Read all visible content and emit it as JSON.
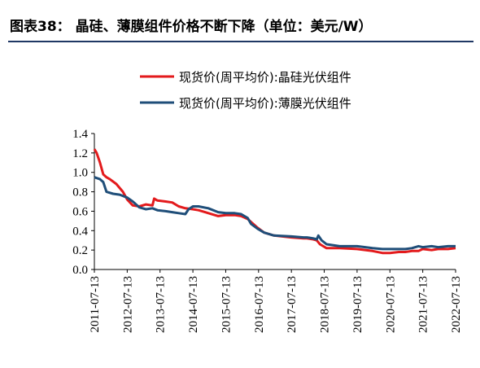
{
  "title": "图表38： 晶硅、薄膜组件价格不断下降（单位：美元/W）",
  "chart_data": {
    "type": "line",
    "title": "图表38： 晶硅、薄膜组件价格不断下降（单位：美元/W）",
    "legend_position": "top-center",
    "grid": false,
    "ylim": [
      0,
      1.4
    ],
    "yticks": [
      "1.4",
      "1.2",
      "1.0",
      "0.8",
      "0.6",
      "0.4",
      "0.2",
      "0.0"
    ],
    "yticks_values": [
      1.4,
      1.2,
      1.0,
      0.8,
      0.6,
      0.4,
      0.2,
      0.0
    ],
    "xticks": [
      "2011-07-13",
      "2012-07-13",
      "2013-07-13",
      "2014-07-13",
      "2015-07-13",
      "2016-07-13",
      "2017-07-13",
      "2018-07-13",
      "2019-07-13",
      "2020-07-13",
      "2021-07-13",
      "2022-07-13"
    ],
    "series": [
      {
        "name": "现货价(周平均价):晶硅光伏组件",
        "color": "#e31a1c",
        "x": [
          2011.53,
          2011.6,
          2011.7,
          2011.8,
          2011.9,
          2012.0,
          2012.2,
          2012.4,
          2012.53,
          2012.7,
          2012.9,
          2013.1,
          2013.3,
          2013.35,
          2013.45,
          2013.7,
          2013.9,
          2014.1,
          2014.3,
          2014.53,
          2014.7,
          2015.0,
          2015.3,
          2015.53,
          2015.8,
          2016.0,
          2016.2,
          2016.3,
          2016.5,
          2016.7,
          2017.0,
          2017.53,
          2017.9,
          2018.0,
          2018.2,
          2018.3,
          2018.4,
          2018.6,
          2019.0,
          2019.53,
          2020.0,
          2020.3,
          2020.53,
          2020.8,
          2021.0,
          2021.2,
          2021.4,
          2021.53,
          2021.8,
          2022.0,
          2022.3,
          2022.53
        ],
        "values": [
          1.24,
          1.2,
          1.1,
          0.98,
          0.95,
          0.93,
          0.88,
          0.8,
          0.72,
          0.66,
          0.65,
          0.67,
          0.66,
          0.73,
          0.71,
          0.7,
          0.69,
          0.65,
          0.63,
          0.62,
          0.61,
          0.58,
          0.55,
          0.56,
          0.56,
          0.55,
          0.52,
          0.49,
          0.43,
          0.38,
          0.35,
          0.33,
          0.32,
          0.32,
          0.31,
          0.3,
          0.26,
          0.22,
          0.22,
          0.21,
          0.19,
          0.17,
          0.17,
          0.18,
          0.18,
          0.19,
          0.19,
          0.21,
          0.2,
          0.21,
          0.21,
          0.22
        ]
      },
      {
        "name": "现货价(周平均价):薄膜光伏组件",
        "color": "#1f4e79",
        "x": [
          2011.53,
          2011.7,
          2011.8,
          2011.9,
          2012.1,
          2012.3,
          2012.53,
          2012.7,
          2012.9,
          2013.1,
          2013.3,
          2013.45,
          2013.7,
          2013.9,
          2014.1,
          2014.3,
          2014.4,
          2014.53,
          2014.7,
          2015.0,
          2015.3,
          2015.53,
          2015.8,
          2016.0,
          2016.2,
          2016.3,
          2016.5,
          2016.7,
          2017.0,
          2017.53,
          2017.9,
          2018.0,
          2018.2,
          2018.3,
          2018.35,
          2018.45,
          2018.6,
          2019.0,
          2019.53,
          2020.0,
          2020.3,
          2020.53,
          2020.8,
          2021.0,
          2021.2,
          2021.4,
          2021.53,
          2021.8,
          2022.0,
          2022.3,
          2022.53
        ],
        "values": [
          0.95,
          0.93,
          0.9,
          0.8,
          0.78,
          0.77,
          0.74,
          0.7,
          0.64,
          0.62,
          0.63,
          0.61,
          0.6,
          0.59,
          0.58,
          0.57,
          0.62,
          0.65,
          0.65,
          0.63,
          0.59,
          0.58,
          0.58,
          0.57,
          0.53,
          0.47,
          0.42,
          0.38,
          0.35,
          0.34,
          0.33,
          0.33,
          0.32,
          0.31,
          0.35,
          0.3,
          0.26,
          0.24,
          0.24,
          0.22,
          0.21,
          0.21,
          0.21,
          0.21,
          0.22,
          0.24,
          0.23,
          0.24,
          0.23,
          0.24,
          0.24
        ]
      }
    ]
  }
}
